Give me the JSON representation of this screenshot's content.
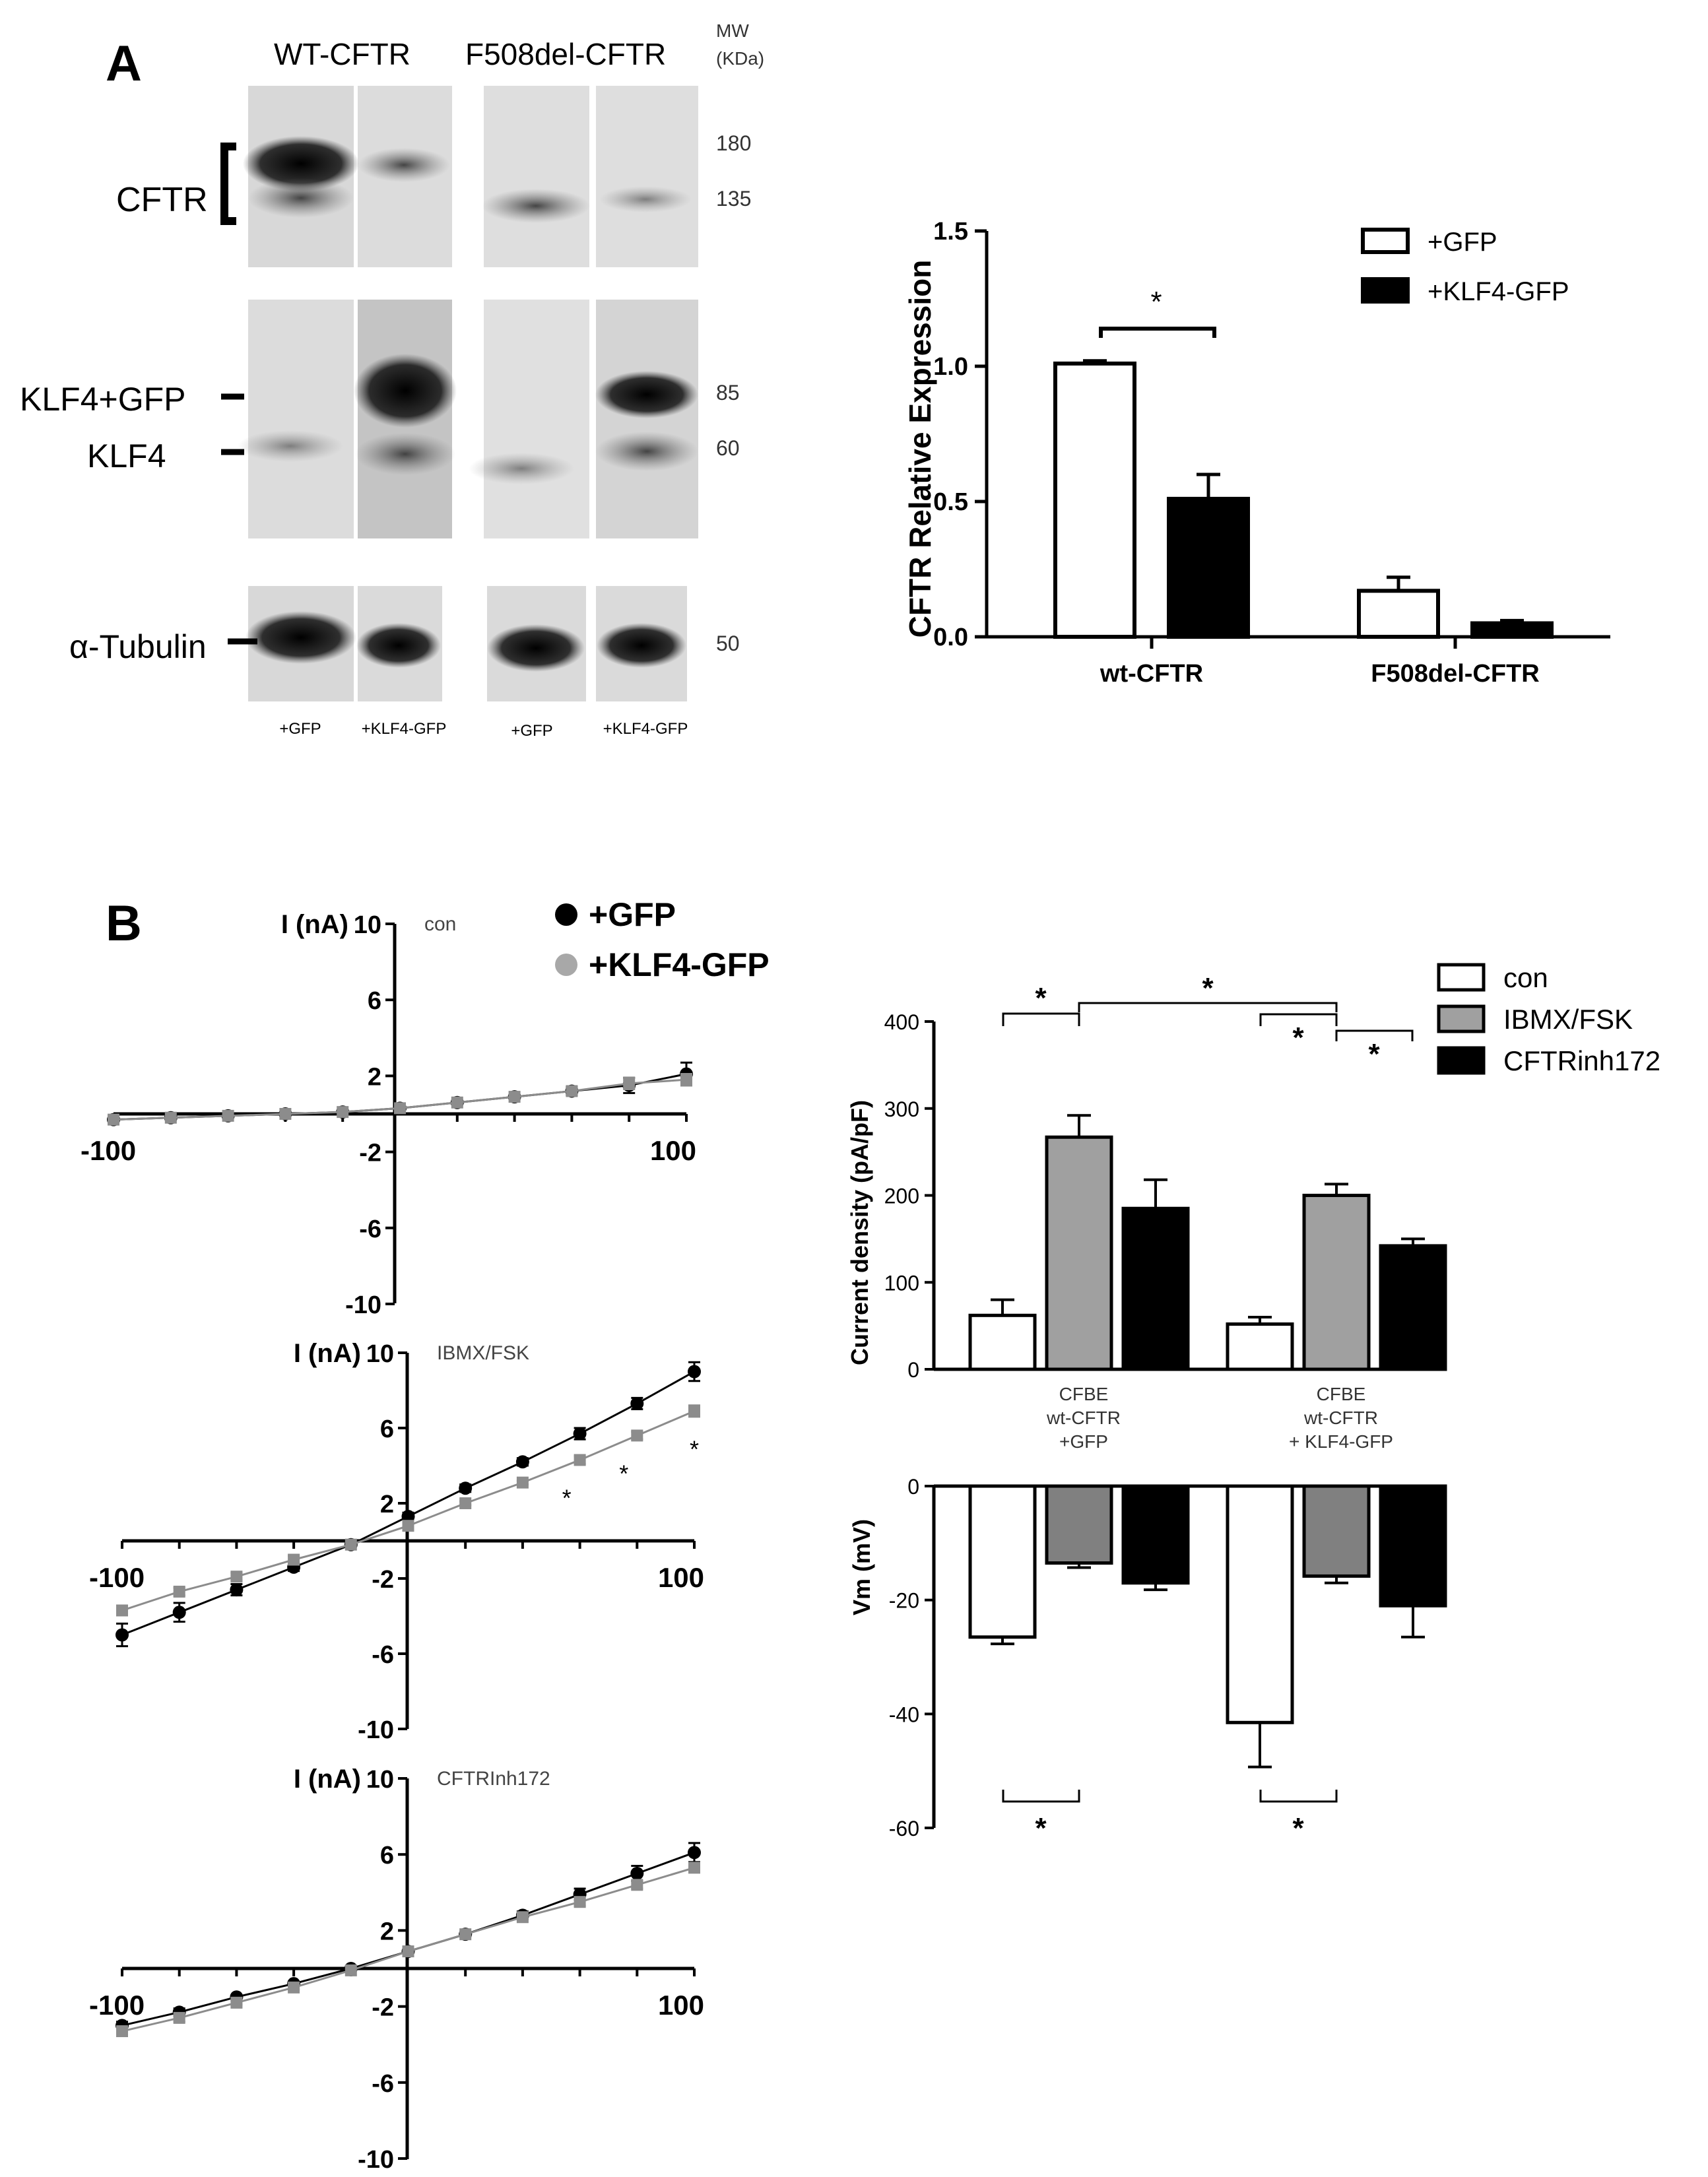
{
  "panelA": {
    "label": "A",
    "blot": {
      "group_labels": [
        "WT-CFTR",
        "F508del-CFTR"
      ],
      "mw_header": [
        "MW",
        "(KDa)"
      ],
      "rows": [
        {
          "label": "CFTR",
          "mw": [
            "180",
            "135"
          ]
        },
        {
          "label": "KLF4+GFP",
          "mw": [
            "85"
          ]
        },
        {
          "label": "KLF4",
          "mw": [
            "60"
          ]
        },
        {
          "label": "α-Tubulin",
          "mw": [
            "50"
          ]
        }
      ],
      "lane_labels": [
        "+GFP",
        "+KLF4-GFP",
        "+GFP",
        "+KLF4-GFP"
      ]
    }
  },
  "panelB": {
    "label": "B"
  },
  "colors": {
    "gray_marker": "#8c8c8c",
    "gray_bar": "#a0a0a0",
    "dark_gray_bar": "#808080",
    "black": "#000000",
    "white": "#ffffff"
  },
  "chart_data": [
    {
      "id": "cftr_expression",
      "type": "bar",
      "ylabel": "CFTR Relative Expression",
      "categories": [
        "wt-CFTR",
        "F508del-CFTR"
      ],
      "series": [
        {
          "name": "+GFP",
          "color": "#ffffff",
          "values": [
            1.01,
            0.17
          ],
          "errors": [
            0.01,
            0.05
          ]
        },
        {
          "name": "+KLF4-GFP",
          "color": "#000000",
          "values": [
            0.51,
            0.05
          ],
          "errors": [
            0.09,
            0.01
          ]
        }
      ],
      "ylim": [
        0,
        1.5
      ],
      "yticks": [
        "0.0",
        "0.5",
        "1.0",
        "1.5"
      ],
      "significance": [
        "*"
      ],
      "legend": "top-right"
    },
    {
      "id": "iv_con",
      "type": "line",
      "ylabel": "I (nA)",
      "annotation": "con",
      "x": [
        -100,
        -80,
        -60,
        -40,
        -20,
        0,
        20,
        40,
        60,
        80,
        100
      ],
      "series": [
        {
          "name": "+GFP",
          "marker": "circle",
          "values": [
            -0.3,
            -0.2,
            -0.1,
            0.0,
            0.1,
            0.3,
            0.6,
            0.9,
            1.2,
            1.5,
            2.1
          ],
          "errors": [
            0,
            0,
            0,
            0,
            0,
            0,
            0,
            0.1,
            0.2,
            0.4,
            0.6
          ]
        },
        {
          "name": "+KLF4-GFP",
          "marker": "square",
          "values": [
            -0.3,
            -0.2,
            -0.1,
            0.0,
            0.1,
            0.3,
            0.6,
            0.9,
            1.2,
            1.6,
            1.8
          ],
          "errors": [
            0,
            0,
            0,
            0,
            0,
            0,
            0,
            0.1,
            0.2,
            0.3,
            0.3
          ]
        }
      ],
      "xlim": [
        -100,
        100
      ],
      "ylim": [
        -10,
        10
      ],
      "xticks": [
        "-100",
        "100"
      ],
      "yticks": [
        "10",
        "6",
        "2",
        "-2",
        "-6",
        "-10"
      ],
      "legend": "top-right"
    },
    {
      "id": "iv_ibmx",
      "type": "line",
      "ylabel": "I (nA)",
      "annotation": "IBMX/FSK",
      "x": [
        -100,
        -80,
        -60,
        -40,
        -20,
        0,
        20,
        40,
        60,
        80,
        100
      ],
      "series": [
        {
          "name": "+GFP",
          "marker": "circle",
          "values": [
            -5.0,
            -3.8,
            -2.6,
            -1.4,
            -0.2,
            1.3,
            2.8,
            4.2,
            5.7,
            7.3,
            9.0
          ],
          "errors": [
            0.6,
            0.5,
            0.3,
            0.2,
            0,
            0.2,
            0.2,
            0.2,
            0.3,
            0.3,
            0.5
          ]
        },
        {
          "name": "+KLF4-GFP",
          "marker": "square",
          "values": [
            -3.7,
            -2.7,
            -1.9,
            -1.0,
            -0.2,
            0.8,
            2.0,
            3.1,
            4.3,
            5.6,
            6.9
          ],
          "errors": [
            0.2,
            0.2,
            0.2,
            0.2,
            0,
            0.1,
            0.1,
            0.1,
            0.2,
            0.2,
            0.3
          ]
        }
      ],
      "significance": [
        "*",
        "*",
        "*"
      ],
      "xlim": [
        -100,
        100
      ],
      "ylim": [
        -10,
        10
      ],
      "xticks": [
        "-100",
        "100"
      ],
      "yticks": [
        "10",
        "6",
        "2",
        "-2",
        "-6",
        "-10"
      ]
    },
    {
      "id": "iv_inh",
      "type": "line",
      "ylabel": "I (nA)",
      "annotation": "CFTRInh172",
      "x": [
        -100,
        -80,
        -60,
        -40,
        -20,
        0,
        20,
        40,
        60,
        80,
        100
      ],
      "series": [
        {
          "name": "+GFP",
          "marker": "circle",
          "values": [
            -3.0,
            -2.3,
            -1.5,
            -0.8,
            0.0,
            0.9,
            1.8,
            2.8,
            3.9,
            5.0,
            6.1
          ],
          "errors": [
            0.2,
            0.2,
            0.1,
            0.1,
            0,
            0.1,
            0.1,
            0.2,
            0.3,
            0.4,
            0.5
          ]
        },
        {
          "name": "+KLF4-GFP",
          "marker": "square",
          "values": [
            -3.3,
            -2.6,
            -1.8,
            -1.0,
            -0.1,
            0.9,
            1.8,
            2.7,
            3.5,
            4.4,
            5.3
          ],
          "errors": [
            0.2,
            0.2,
            0.1,
            0.1,
            0,
            0.1,
            0.1,
            0.1,
            0.2,
            0.2,
            0.2
          ]
        }
      ],
      "xlim": [
        -100,
        100
      ],
      "ylim": [
        -10,
        10
      ],
      "xticks": [
        "-100",
        "100"
      ],
      "yticks": [
        "10",
        "6",
        "2",
        "-2",
        "-6",
        "-10"
      ]
    },
    {
      "id": "current_density",
      "type": "bar",
      "ylabel": "Current density (pA/pF)",
      "categories": [
        "CFBE wt-CFTR +GFP",
        "CFBE wt-CFTR + KLF4-GFP"
      ],
      "category_lines": [
        [
          "CFBE",
          "wt-CFTR",
          "+GFP"
        ],
        [
          "CFBE",
          "wt-CFTR",
          "+ KLF4-GFP"
        ]
      ],
      "series": [
        {
          "name": "con",
          "color": "#ffffff",
          "values": [
            62,
            52
          ],
          "errors": [
            18,
            8
          ]
        },
        {
          "name": "IBMX/FSK",
          "color": "#a0a0a0",
          "values": [
            267,
            200
          ],
          "errors": [
            25,
            13
          ]
        },
        {
          "name": "CFTRinh172",
          "color": "#000000",
          "values": [
            185,
            142
          ],
          "errors": [
            33,
            8
          ]
        }
      ],
      "ylim": [
        0,
        400
      ],
      "yticks": [
        "0",
        "100",
        "200",
        "300",
        "400"
      ],
      "significance": [
        "*",
        "*",
        "*",
        "*"
      ],
      "legend": "top-right"
    },
    {
      "id": "vm",
      "type": "bar",
      "ylabel": "Vm (mV)",
      "categories": [
        "CFBE wt-CFTR +GFP",
        "CFBE wt-CFTR + KLF4-GFP"
      ],
      "series": [
        {
          "name": "con",
          "color": "#ffffff",
          "values": [
            -26.5,
            -41.5
          ],
          "errors": [
            1.2,
            7.8
          ]
        },
        {
          "name": "IBMX/FSK",
          "color": "#808080",
          "values": [
            -13.5,
            -15.8
          ],
          "errors": [
            0.8,
            1.2
          ]
        },
        {
          "name": "CFTRinh172",
          "color": "#000000",
          "values": [
            -17.0,
            -21.0
          ],
          "errors": [
            1.2,
            5.5
          ]
        }
      ],
      "ylim": [
        -60,
        0
      ],
      "yticks": [
        "0",
        "-20",
        "-40",
        "-60"
      ],
      "significance": [
        "*",
        "*"
      ]
    }
  ]
}
